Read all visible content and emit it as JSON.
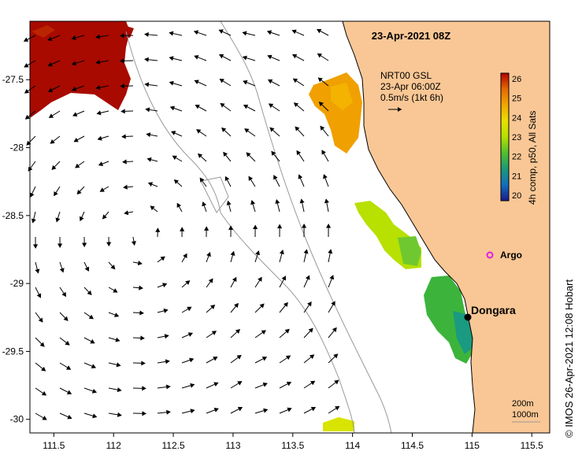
{
  "header": {
    "timestamp": "23-Apr-2021 08Z"
  },
  "legend": {
    "current_title": "NRT00 GSL",
    "current_time": "23-Apr 06:00Z",
    "current_scale": "0.5m/s (1kt 6h)",
    "colorbar_label": "4h comp, p50, All Sats",
    "colorbar_ticks": [
      "26",
      "25",
      "24",
      "23",
      "22",
      "21",
      "20"
    ],
    "colorbar_colors": [
      "#b40000",
      "#e46a00",
      "#f0a800",
      "#e8e000",
      "#b4e000",
      "#50c030",
      "#1a9a78",
      "#1070c0",
      "#1a1a8c"
    ],
    "bathy_200": "200m",
    "bathy_1000": "1000m"
  },
  "axes": {
    "x_ticks": [
      "111.5",
      "112",
      "112.5",
      "113",
      "113.5",
      "114",
      "114.5",
      "115",
      "115.5"
    ],
    "y_ticks": [
      "-27.5",
      "-28",
      "-28.5",
      "-29",
      "-29.5",
      "-30"
    ],
    "x_range": [
      111.3,
      115.65
    ],
    "y_range": [
      -30.1,
      -27.07
    ]
  },
  "places": [
    {
      "name": "Dongara",
      "lon": 114.93,
      "lat": -29.25
    },
    {
      "name": "Argo",
      "lon": 115.13,
      "lat": -28.82
    }
  ],
  "credit": "©  IMOS 26-Apr-2021 12:08 Hobart",
  "colors": {
    "land": "#f9c795",
    "ocean": "#ffffff",
    "arrow": "#000000",
    "contour": "#999999",
    "argo": "#e020e0"
  }
}
